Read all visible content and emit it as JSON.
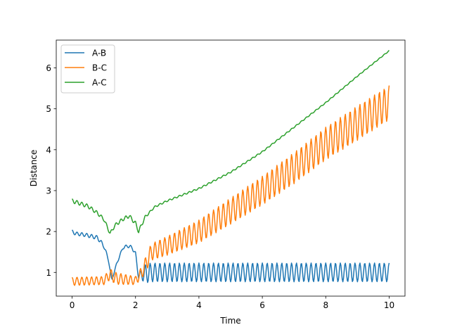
{
  "chart_data": {
    "type": "line",
    "title": "",
    "xlabel": "Time",
    "ylabel": "Distance",
    "xlim": [
      -0.5,
      10.5
    ],
    "ylim": [
      0.42,
      6.68
    ],
    "xticks": [
      0,
      2,
      4,
      6,
      8,
      10
    ],
    "yticks": [
      1,
      2,
      3,
      4,
      5,
      6
    ],
    "grid": false,
    "legend_position": "top-left",
    "sample_step": 0.02,
    "series": [
      {
        "name": "A-B",
        "color": "#1f77b4",
        "description": "keypoints of a fast oscillation",
        "points": [
          [
            0.0,
            2.0
          ],
          [
            0.1,
            1.95
          ],
          [
            0.4,
            1.92
          ],
          [
            0.8,
            1.85
          ],
          [
            1.0,
            1.65
          ],
          [
            1.15,
            1.3
          ],
          [
            1.25,
            0.8
          ],
          [
            1.4,
            1.2
          ],
          [
            1.6,
            1.6
          ],
          [
            1.75,
            1.65
          ],
          [
            1.9,
            1.6
          ],
          [
            2.0,
            1.45
          ],
          [
            2.1,
            0.9
          ],
          [
            2.2,
            0.95
          ],
          [
            2.5,
            1.0
          ],
          [
            10.0,
            1.0
          ]
        ],
        "oscillation": [
          [
            0.0,
            0.04,
            6.5
          ],
          [
            1.0,
            0.05,
            6.5
          ],
          [
            1.3,
            0.02,
            6.5
          ],
          [
            2.0,
            0.05,
            6.5
          ],
          [
            2.15,
            0.1,
            6.5
          ],
          [
            2.3,
            0.23,
            6.5
          ],
          [
            10.0,
            0.23,
            6.5
          ]
        ]
      },
      {
        "name": "B-C",
        "color": "#ff7f0e",
        "description": "keypoints of a growing oscillation",
        "points": [
          [
            0.0,
            0.78
          ],
          [
            1.0,
            0.8
          ],
          [
            1.2,
            0.95
          ],
          [
            1.4,
            0.85
          ],
          [
            2.0,
            0.8
          ],
          [
            2.2,
            1.0
          ],
          [
            2.5,
            1.5
          ],
          [
            3.0,
            1.65
          ],
          [
            4.0,
            2.0
          ],
          [
            5.0,
            2.5
          ],
          [
            6.0,
            3.0
          ],
          [
            7.0,
            3.55
          ],
          [
            8.0,
            4.15
          ],
          [
            9.0,
            4.65
          ],
          [
            10.0,
            5.15
          ]
        ],
        "oscillation": [
          [
            0.0,
            0.1,
            6.5
          ],
          [
            1.0,
            0.1,
            6.5
          ],
          [
            1.3,
            0.15,
            6.5
          ],
          [
            2.0,
            0.1,
            6.5
          ],
          [
            2.4,
            0.2,
            6.5
          ],
          [
            3.0,
            0.23,
            6.5
          ],
          [
            4.0,
            0.28,
            6.5
          ],
          [
            5.0,
            0.32,
            6.5
          ],
          [
            6.0,
            0.35,
            6.5
          ],
          [
            7.0,
            0.38,
            6.5
          ],
          [
            8.0,
            0.4,
            6.5
          ],
          [
            9.0,
            0.42,
            6.5
          ],
          [
            10.0,
            0.42,
            6.5
          ]
        ]
      },
      {
        "name": "A-C",
        "color": "#2ca02c",
        "description": "keypoints of a slow oscillation",
        "points": [
          [
            0.0,
            2.75
          ],
          [
            0.5,
            2.62
          ],
          [
            0.8,
            2.45
          ],
          [
            1.0,
            2.3
          ],
          [
            1.2,
            1.95
          ],
          [
            1.35,
            2.15
          ],
          [
            1.6,
            2.3
          ],
          [
            1.8,
            2.38
          ],
          [
            2.0,
            2.2
          ],
          [
            2.1,
            2.0
          ],
          [
            2.3,
            2.35
          ],
          [
            2.6,
            2.6
          ],
          [
            3.0,
            2.75
          ],
          [
            4.0,
            3.05
          ],
          [
            5.0,
            3.45
          ],
          [
            6.0,
            3.95
          ],
          [
            7.0,
            4.55
          ],
          [
            8.0,
            5.15
          ],
          [
            9.0,
            5.8
          ],
          [
            10.0,
            6.42
          ]
        ],
        "oscillation": [
          [
            0.0,
            0.05,
            6.5
          ],
          [
            1.0,
            0.04,
            6.5
          ],
          [
            1.4,
            0.04,
            6.5
          ],
          [
            2.1,
            0.05,
            6.5
          ],
          [
            2.5,
            0.02,
            6.5
          ],
          [
            10.0,
            0.01,
            6.5
          ]
        ]
      }
    ]
  }
}
